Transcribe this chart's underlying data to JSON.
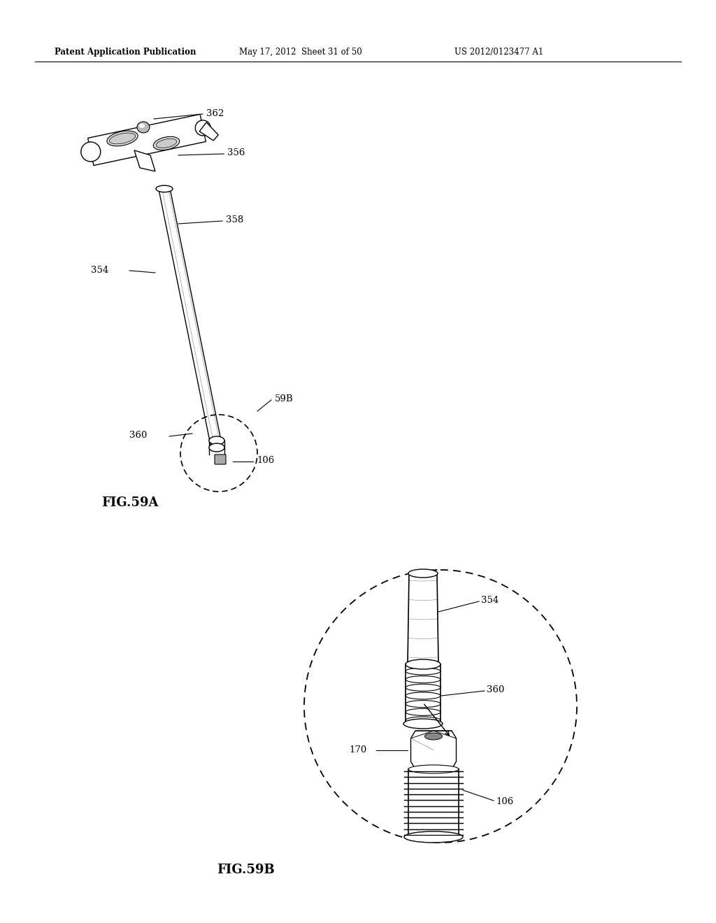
{
  "background_color": "#ffffff",
  "header_left": "Patent Application Publication",
  "header_center": "May 17, 2012  Sheet 31 of 50",
  "header_right": "US 2012/0123477 A1",
  "fig59a_label": "FIG.59A",
  "fig59b_label": "FIG.59B"
}
